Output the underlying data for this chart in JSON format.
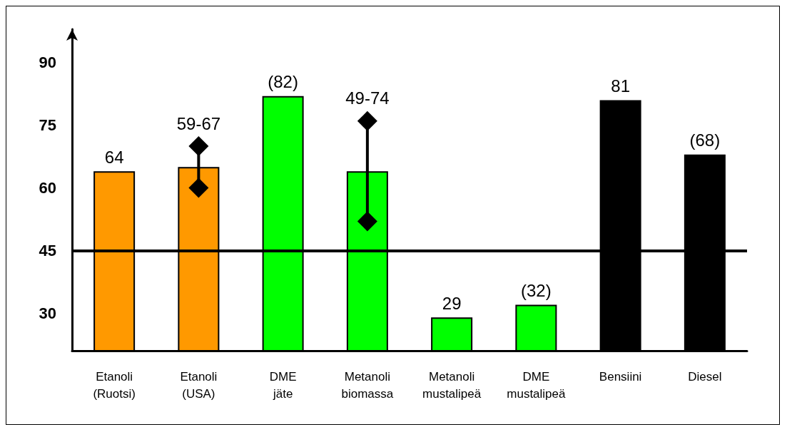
{
  "chart_data": {
    "type": "bar",
    "categories": [
      "Etanoli\n(Ruotsi)",
      "Etanoli\n(USA)",
      "DME\njäte",
      "Metanoli\nbiomassa",
      "Metanoli\nmustalipeä",
      "DME\nmustalipeä",
      "Bensiini",
      "Diesel"
    ],
    "series": [
      {
        "colors": [
          "#ff9900",
          "#ff9900",
          "#00ff00",
          "#00ff00",
          "#00ff00",
          "#00ff00",
          "#000000",
          "#000000"
        ],
        "values": [
          64,
          65,
          82,
          64,
          29,
          32,
          81,
          68
        ],
        "value_labels": [
          "64",
          null,
          "(82)",
          null,
          "29",
          "(32)",
          "81",
          "(68)"
        ]
      },
      {
        "type": "line",
        "color": "#000000",
        "marker": "diamond",
        "line_style": "solid",
        "x": [
          "Etanoli\n(USA)",
          "Etanoli\n(USA)",
          "Etanoli\n(USA)",
          "Metanoli\nbiomassa",
          "Metanoli\nbiomassa"
        ],
        "values": [
          60,
          70,
          null,
          52,
          76
        ],
        "value_labels": [
          null,
          "59-67",
          null,
          null,
          "49-74"
        ]
      }
    ],
    "ylim": [
      21,
      98
    ],
    "yticks": [
      30,
      45,
      60,
      75,
      90
    ],
    "ref_lines": [
      {
        "axis": "y",
        "value": 45,
        "color": "#000000"
      }
    ],
    "grid": false
  }
}
